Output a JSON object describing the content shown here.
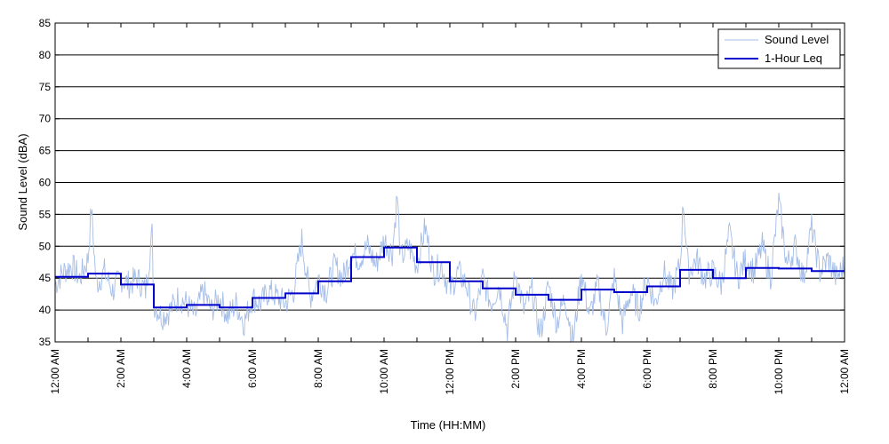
{
  "chart_data": {
    "type": "line",
    "xlabel": "Time (HH:MM)",
    "ylabel": "Sound Level (dBA)",
    "ylim": [
      35,
      85
    ],
    "yticks": [
      35,
      40,
      45,
      50,
      55,
      60,
      65,
      70,
      75,
      80,
      85
    ],
    "xlim_hours": [
      0,
      24
    ],
    "xticks": [
      {
        "hour": 0,
        "label": "12:00 AM"
      },
      {
        "hour": 2,
        "label": "2:00 AM"
      },
      {
        "hour": 4,
        "label": "4:00 AM"
      },
      {
        "hour": 6,
        "label": "6:00 AM"
      },
      {
        "hour": 8,
        "label": "8:00 AM"
      },
      {
        "hour": 10,
        "label": "10:00 AM"
      },
      {
        "hour": 12,
        "label": "12:00 PM"
      },
      {
        "hour": 14,
        "label": "2:00 PM"
      },
      {
        "hour": 16,
        "label": "4:00 PM"
      },
      {
        "hour": 18,
        "label": "6:00 PM"
      },
      {
        "hour": 20,
        "label": "8:00 PM"
      },
      {
        "hour": 22,
        "label": "10:00 PM"
      },
      {
        "hour": 24,
        "label": "12:00 AM"
      }
    ],
    "grid": "horizontal",
    "legend_position": "top-right",
    "series": [
      {
        "name": "Sound Level",
        "color": "#a4bde8",
        "style": "thin-line",
        "x_hours": [
          0,
          0.25,
          0.5,
          0.75,
          1,
          1.1,
          1.25,
          1.5,
          1.75,
          2,
          2.25,
          2.5,
          2.75,
          2.95,
          3,
          3.25,
          3.5,
          3.75,
          4,
          4.25,
          4.5,
          4.75,
          5,
          5.25,
          5.5,
          5.75,
          6,
          6.25,
          6.5,
          6.75,
          7,
          7.25,
          7.5,
          7.75,
          8,
          8.25,
          8.5,
          8.75,
          9,
          9.25,
          9.5,
          9.75,
          10,
          10.25,
          10.4,
          10.5,
          10.75,
          11,
          11.25,
          11.5,
          11.75,
          12,
          12.25,
          12.5,
          12.75,
          13,
          13.25,
          13.5,
          13.75,
          14,
          14.25,
          14.5,
          14.75,
          15,
          15.25,
          15.5,
          15.75,
          16,
          16.25,
          16.5,
          16.75,
          17,
          17.25,
          17.5,
          17.75,
          18,
          18.25,
          18.5,
          18.75,
          19,
          19.1,
          19.25,
          19.5,
          19.75,
          20,
          20.25,
          20.5,
          20.75,
          21,
          21.25,
          21.5,
          21.75,
          22,
          22.25,
          22.5,
          22.75,
          23,
          23.25,
          23.5,
          23.75,
          24
        ],
        "values": [
          44,
          46,
          47,
          45,
          48,
          56,
          44,
          46,
          43,
          45,
          44,
          45,
          43,
          52,
          41,
          39,
          40,
          42,
          41,
          39,
          43,
          40,
          42,
          39,
          41,
          38,
          42,
          41,
          43,
          42,
          41,
          43,
          51,
          42,
          45,
          43,
          47,
          45,
          49,
          48,
          50,
          47,
          51,
          49,
          58,
          48,
          50,
          47,
          53,
          46,
          47,
          43,
          46,
          44,
          39,
          45,
          41,
          44,
          37,
          46,
          40,
          43,
          36,
          44,
          38,
          42,
          35,
          46,
          39,
          44,
          37,
          45,
          38,
          43,
          40,
          45,
          41,
          46,
          43,
          47,
          57,
          46,
          48,
          45,
          46,
          44,
          52,
          45,
          48,
          46,
          50,
          45,
          57,
          47,
          50,
          45,
          53,
          46,
          48,
          45,
          47
        ]
      },
      {
        "name": "1-Hour Leq",
        "color": "#0000cc",
        "style": "thick-step",
        "hour_start": [
          0,
          1,
          2,
          3,
          4,
          5,
          6,
          7,
          8,
          9,
          10,
          11,
          12,
          13,
          14,
          15,
          16,
          17,
          18,
          19,
          20,
          21,
          22,
          23
        ],
        "values": [
          45.2,
          45.7,
          44.0,
          40.4,
          40.8,
          40.4,
          41.9,
          42.6,
          44.5,
          48.3,
          49.8,
          47.5,
          44.5,
          43.4,
          42.4,
          41.6,
          43.2,
          42.8,
          43.7,
          46.3,
          45.0,
          46.6,
          46.5,
          46.1
        ]
      }
    ]
  }
}
